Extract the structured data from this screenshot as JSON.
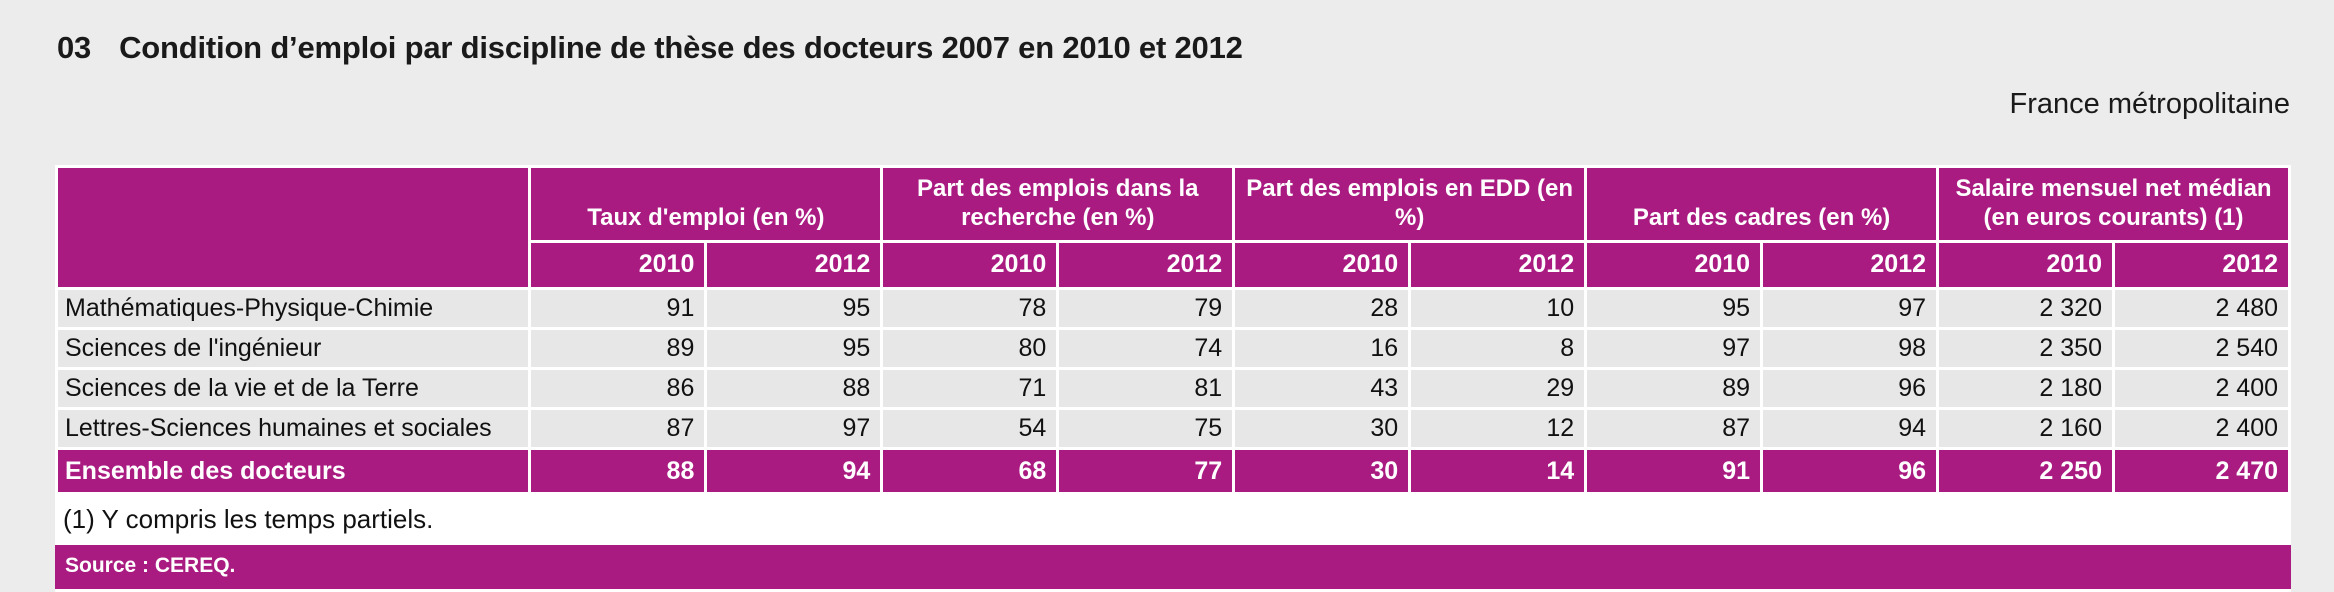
{
  "page": {
    "title_number": "03",
    "title_text": "Condition d’emploi par discipline de thèse des docteurs 2007 en 2010 et 2012",
    "region_label": "France métropolitaine"
  },
  "colors": {
    "accent": "#AA1B82",
    "row_bg": "#E7E7E7",
    "page_bg": "#ECECEC"
  },
  "table": {
    "groups": [
      {
        "label": "Taux d'emploi (en %)"
      },
      {
        "label": "Part des emplois dans la recherche (en %)"
      },
      {
        "label": "Part des emplois en EDD (en %)"
      },
      {
        "label": "Part des cadres (en %)"
      },
      {
        "label": "Salaire mensuel net médian (en euros courants) (1)"
      }
    ],
    "year_columns": [
      "2010",
      "2012",
      "2010",
      "2012",
      "2010",
      "2012",
      "2010",
      "2012",
      "2010",
      "2012"
    ],
    "rows": [
      {
        "label": "Mathématiques-Physique-Chimie",
        "values": [
          "91",
          "95",
          "78",
          "79",
          "28",
          "10",
          "95",
          "97",
          "2 320",
          "2 480"
        ]
      },
      {
        "label": "Sciences de l'ingénieur",
        "values": [
          "89",
          "95",
          "80",
          "74",
          "16",
          "8",
          "97",
          "98",
          "2 350",
          "2 540"
        ]
      },
      {
        "label": "Sciences de la vie et de la Terre",
        "values": [
          "86",
          "88",
          "71",
          "81",
          "43",
          "29",
          "89",
          "96",
          "2 180",
          "2 400"
        ]
      },
      {
        "label": "Lettres-Sciences humaines et sociales",
        "values": [
          "87",
          "97",
          "54",
          "75",
          "30",
          "12",
          "87",
          "94",
          "2 160",
          "2 400"
        ]
      }
    ],
    "total_row": {
      "label": "Ensemble des docteurs",
      "values": [
        "88",
        "94",
        "68",
        "77",
        "30",
        "14",
        "91",
        "96",
        "2 250",
        "2 470"
      ]
    },
    "footnote": "(1) Y compris les temps partiels.",
    "source": "Source : CEREQ."
  },
  "chart_data": {
    "type": "table",
    "title": "03 Condition d’emploi par discipline de thèse des docteurs 2007 en 2010 et 2012",
    "subtitle": "France métropolitaine",
    "column_groups": [
      "Taux d'emploi (en %)",
      "Part des emplois dans la recherche (en %)",
      "Part des emplois en EDD (en %)",
      "Part des cadres (en %)",
      "Salaire mensuel net médian (en euros courants) (1)"
    ],
    "years": [
      2010,
      2012
    ],
    "rows": [
      {
        "discipline": "Mathématiques-Physique-Chimie",
        "taux_emploi": [
          91,
          95
        ],
        "part_recherche": [
          78,
          79
        ],
        "part_edd": [
          28,
          10
        ],
        "part_cadres": [
          95,
          97
        ],
        "salaire_median": [
          2320,
          2480
        ]
      },
      {
        "discipline": "Sciences de l'ingénieur",
        "taux_emploi": [
          89,
          95
        ],
        "part_recherche": [
          80,
          74
        ],
        "part_edd": [
          16,
          8
        ],
        "part_cadres": [
          97,
          98
        ],
        "salaire_median": [
          2350,
          2540
        ]
      },
      {
        "discipline": "Sciences de la vie et de la Terre",
        "taux_emploi": [
          86,
          88
        ],
        "part_recherche": [
          71,
          81
        ],
        "part_edd": [
          43,
          29
        ],
        "part_cadres": [
          89,
          96
        ],
        "salaire_median": [
          2180,
          2400
        ]
      },
      {
        "discipline": "Lettres-Sciences humaines et sociales",
        "taux_emploi": [
          87,
          97
        ],
        "part_recherche": [
          54,
          75
        ],
        "part_edd": [
          30,
          12
        ],
        "part_cadres": [
          87,
          94
        ],
        "salaire_median": [
          2160,
          2400
        ]
      },
      {
        "discipline": "Ensemble des docteurs",
        "taux_emploi": [
          88,
          94
        ],
        "part_recherche": [
          68,
          77
        ],
        "part_edd": [
          30,
          14
        ],
        "part_cadres": [
          91,
          96
        ],
        "salaire_median": [
          2250,
          2470
        ]
      }
    ],
    "footnote": "(1) Y compris les temps partiels.",
    "source": "Source : CEREQ."
  }
}
